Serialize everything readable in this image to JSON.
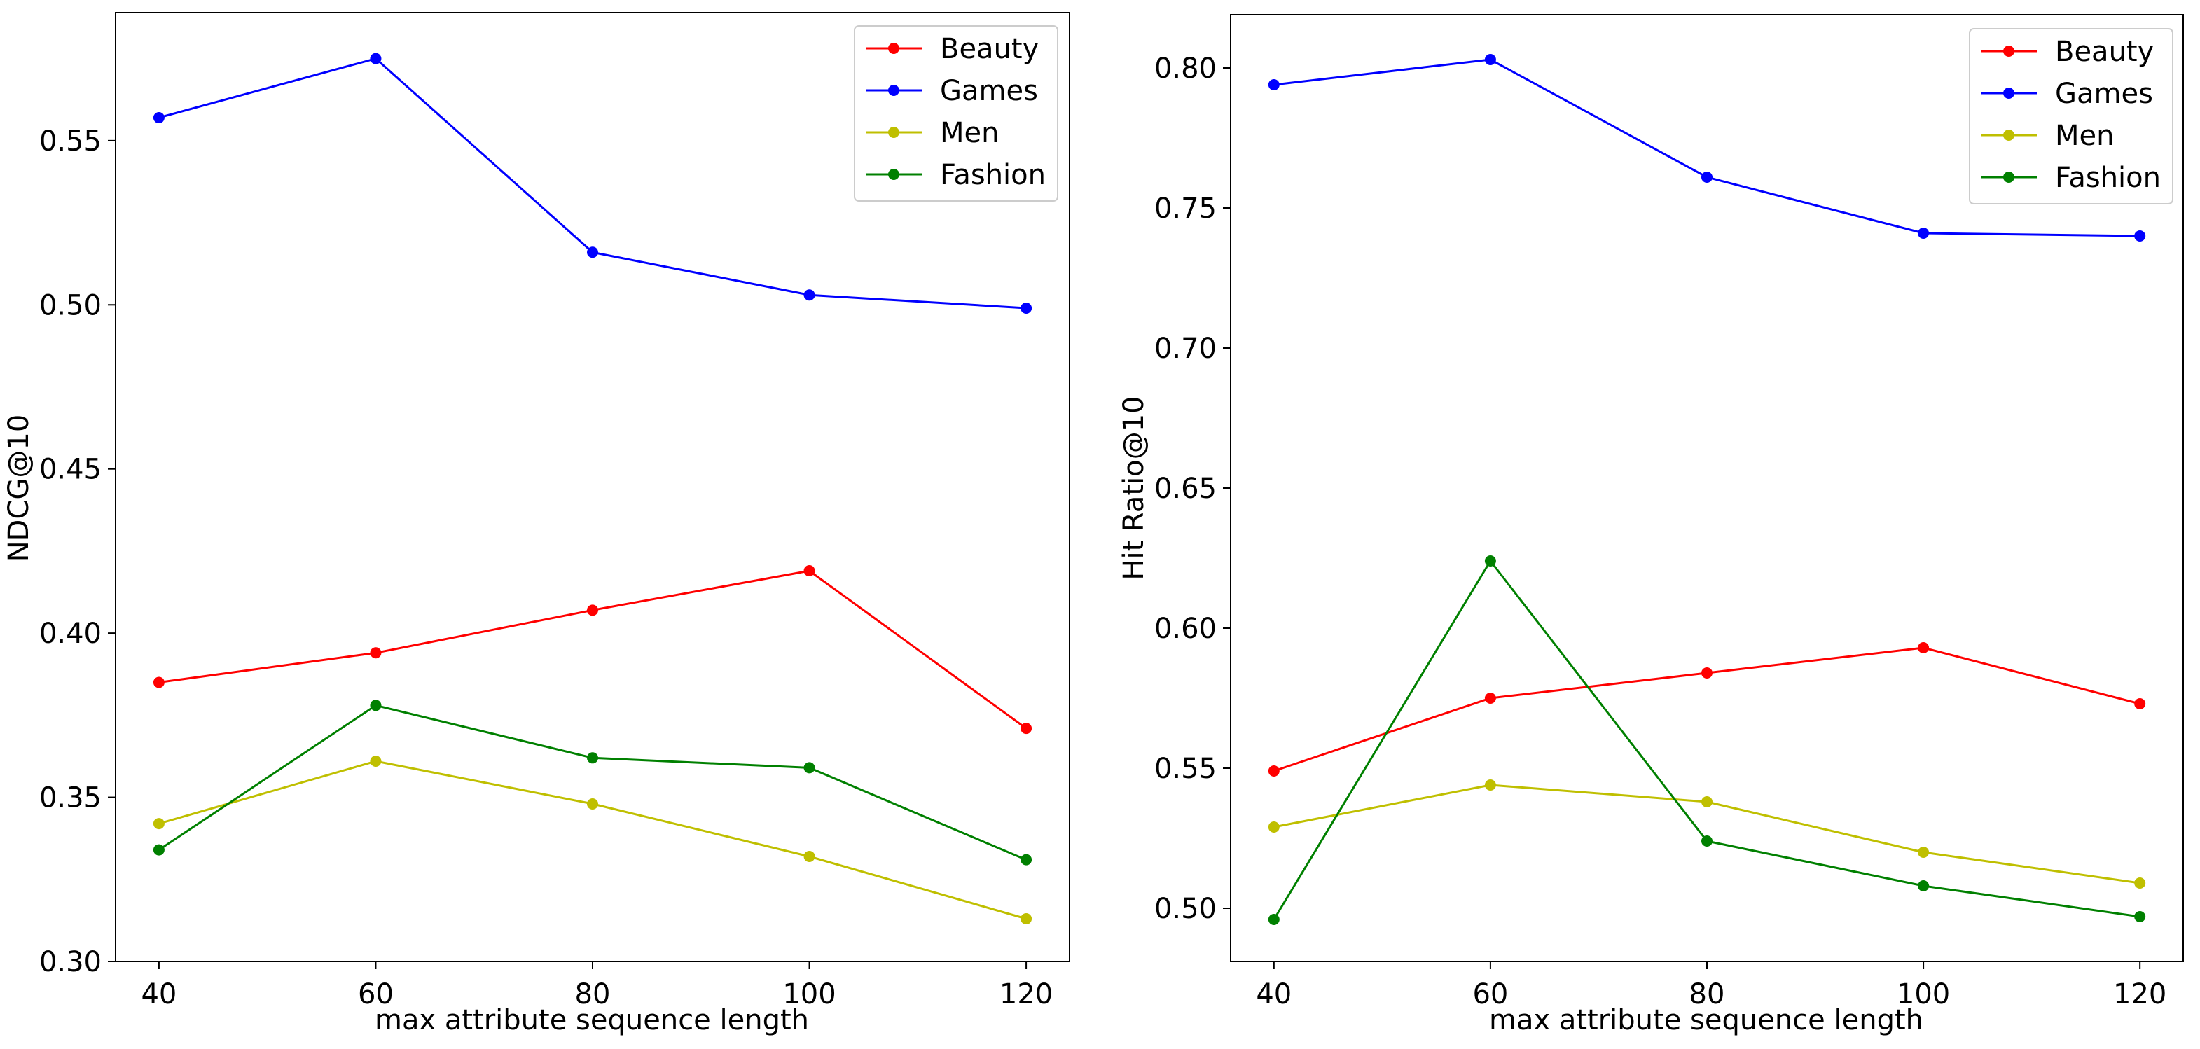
{
  "chart_data": [
    {
      "type": "line",
      "xlabel": "max attribute sequence length",
      "ylabel": "NDCG@10",
      "x": [
        40,
        60,
        80,
        100,
        120
      ],
      "x_ticks": [
        "40",
        "60",
        "80",
        "100",
        "120"
      ],
      "xlim": [
        36,
        124
      ],
      "ylim": [
        0.3,
        0.589
      ],
      "y_ticks": [
        "0.30",
        "0.35",
        "0.40",
        "0.45",
        "0.50",
        "0.55"
      ],
      "legend_position": "top-right",
      "grid": false,
      "series": [
        {
          "name": "Beauty",
          "color": "#ff0000",
          "values": [
            0.385,
            0.394,
            0.407,
            0.419,
            0.371
          ]
        },
        {
          "name": "Games",
          "color": "#0000ff",
          "values": [
            0.557,
            0.575,
            0.516,
            0.503,
            0.499
          ]
        },
        {
          "name": "Men",
          "color": "#bfbf00",
          "values": [
            0.342,
            0.361,
            0.348,
            0.332,
            0.313
          ]
        },
        {
          "name": "Fashion",
          "color": "#008000",
          "values": [
            0.334,
            0.378,
            0.362,
            0.359,
            0.331
          ]
        }
      ]
    },
    {
      "type": "line",
      "xlabel": "max attribute sequence length",
      "ylabel": "Hit Ratio@10",
      "x": [
        40,
        60,
        80,
        100,
        120
      ],
      "x_ticks": [
        "40",
        "60",
        "80",
        "100",
        "120"
      ],
      "xlim": [
        36,
        124
      ],
      "ylim": [
        0.481,
        0.819
      ],
      "y_ticks": [
        "0.50",
        "0.55",
        "0.60",
        "0.65",
        "0.70",
        "0.75",
        "0.80"
      ],
      "legend_position": "top-right",
      "grid": false,
      "series": [
        {
          "name": "Beauty",
          "color": "#ff0000",
          "values": [
            0.549,
            0.575,
            0.584,
            0.593,
            0.573
          ]
        },
        {
          "name": "Games",
          "color": "#0000ff",
          "values": [
            0.794,
            0.803,
            0.761,
            0.741,
            0.74
          ]
        },
        {
          "name": "Men",
          "color": "#bfbf00",
          "values": [
            0.529,
            0.544,
            0.538,
            0.52,
            0.509
          ]
        },
        {
          "name": "Fashion",
          "color": "#008000",
          "values": [
            0.496,
            0.624,
            0.524,
            0.508,
            0.497
          ]
        }
      ]
    }
  ]
}
